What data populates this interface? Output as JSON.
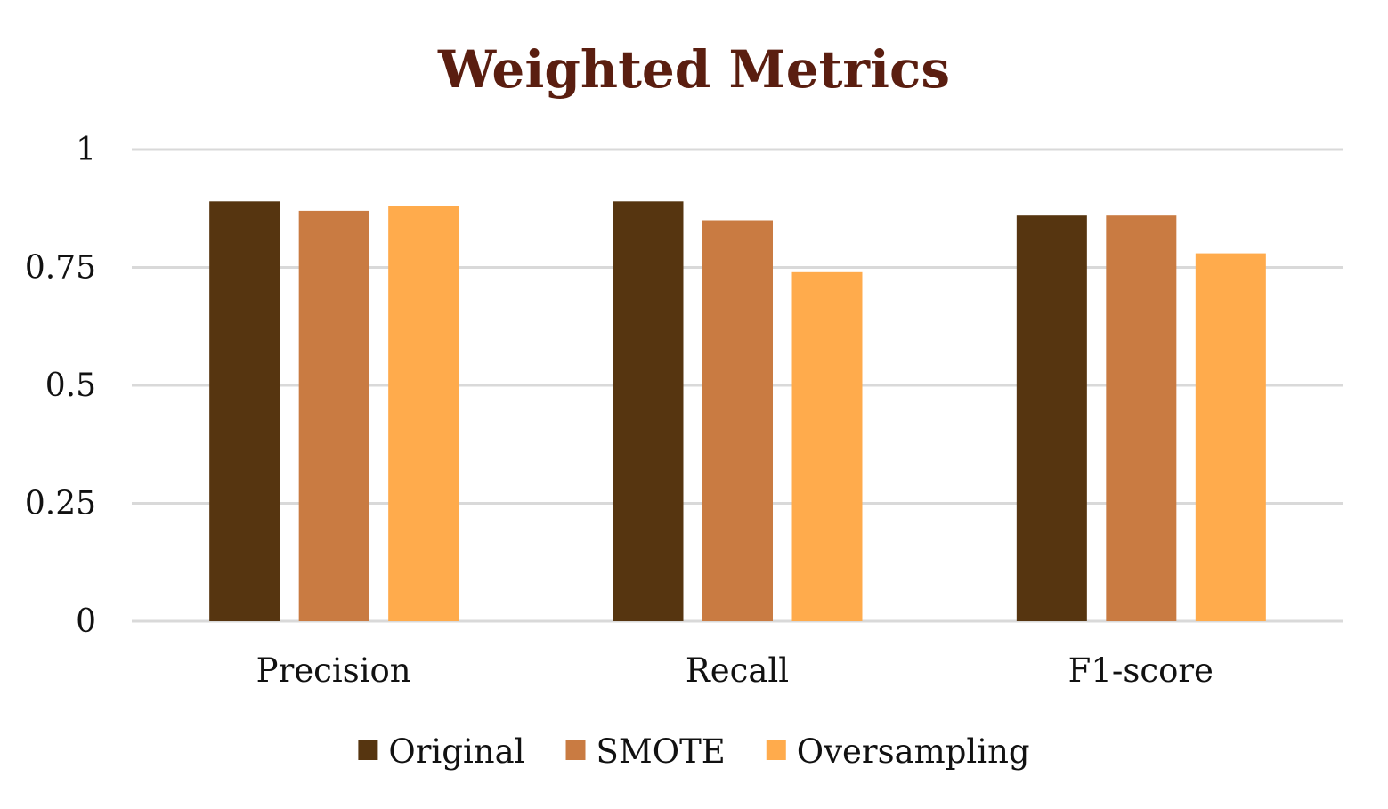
{
  "chart_data": {
    "type": "bar",
    "title": "Weighted Metrics",
    "categories": [
      "Precision",
      "Recall",
      "F1-score"
    ],
    "series": [
      {
        "name": "Original",
        "values": [
          0.89,
          0.89,
          0.86
        ],
        "color": "#563510"
      },
      {
        "name": "SMOTE",
        "values": [
          0.87,
          0.85,
          0.86
        ],
        "color": "#c97b42"
      },
      {
        "name": "Oversampling",
        "values": [
          0.88,
          0.74,
          0.78
        ],
        "color": "#ffab4c"
      }
    ],
    "yticks": [
      "0",
      "0.25",
      "0.5",
      "0.75",
      "1"
    ],
    "ylim": [
      0,
      1
    ],
    "grid": true,
    "legend_position": "bottom",
    "title_color": "#5a1e10"
  }
}
